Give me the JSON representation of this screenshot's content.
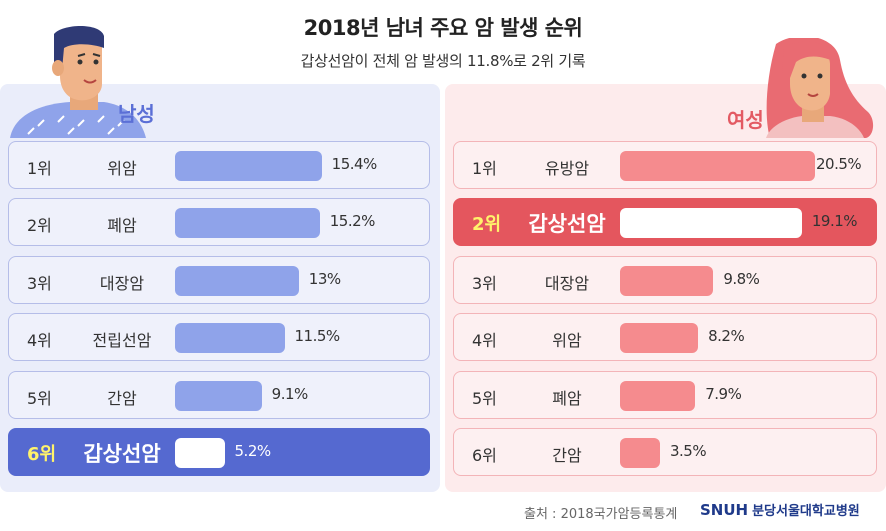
{
  "title": "2018년 남녀 주요 암 발생 순위",
  "subtitle": "갑상선암이 전체 암 발생의 11.8%로 2위 기록",
  "source": "출처 : 2018국가암등록통계",
  "logo": {
    "brand": "SNUH",
    "hospital_name": "분당서울대학교병원"
  },
  "colors": {
    "male_bar": "#8fa3ea",
    "male_highlight": "#5569d0",
    "female_bar": "#f58b8e",
    "female_highlight": "#e4565e"
  },
  "chart_data": [
    {
      "type": "bar",
      "title": "남성",
      "categories": [
        "위암",
        "폐암",
        "대장암",
        "전립선암",
        "간암",
        "갑상선암"
      ],
      "ranks": [
        "1위",
        "2위",
        "3위",
        "4위",
        "5위",
        "6위"
      ],
      "values": [
        15.4,
        15.2,
        13,
        11.5,
        9.1,
        5.2
      ],
      "value_labels": [
        "15.4%",
        "15.2%",
        "13%",
        "11.5%",
        "9.1%",
        "5.2%"
      ],
      "highlight": "갑상선암",
      "orientation": "horizontal"
    },
    {
      "type": "bar",
      "title": "여성",
      "categories": [
        "유방암",
        "갑상선암",
        "대장암",
        "위암",
        "폐암",
        "간암"
      ],
      "ranks": [
        "1위",
        "2위",
        "3위",
        "4위",
        "5위",
        "6위"
      ],
      "values": [
        20.5,
        19.1,
        9.8,
        8.2,
        7.9,
        3.5
      ],
      "value_labels": [
        "20.5%",
        "19.1%",
        "9.8%",
        "8.2%",
        "7.9%",
        "3.5%"
      ],
      "highlight": "갑상선암",
      "orientation": "horizontal"
    }
  ]
}
